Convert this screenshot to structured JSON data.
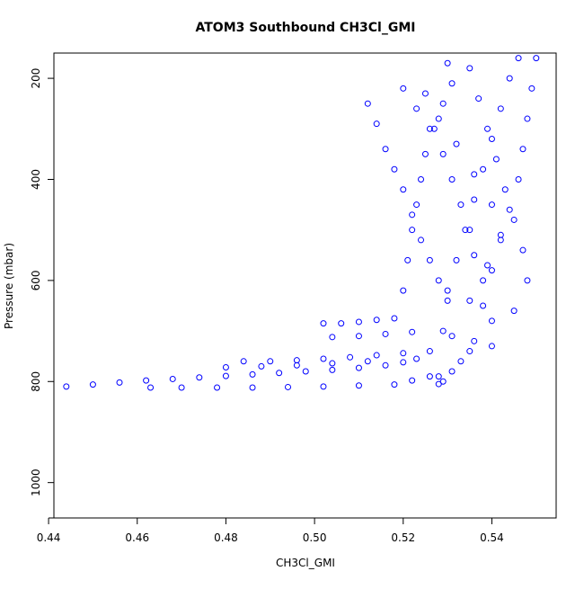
{
  "chart_data": {
    "type": "scatter",
    "title": "ATOM3 Southbound CH3Cl_GMI",
    "xlabel": "CH3Cl_GMI",
    "ylabel": "Pressure (mbar)",
    "xlim": [
      0.4412,
      0.5545
    ],
    "ylim": [
      1070,
      150
    ],
    "y_reversed": true,
    "grid": false,
    "marker": "open-circle",
    "color": "#0000ff",
    "x_ticks": [
      "0.44",
      "0.46",
      "0.48",
      "0.50",
      "0.52",
      "0.54"
    ],
    "y_ticks": [
      "200",
      "400",
      "600",
      "800",
      "1000"
    ],
    "series": [
      {
        "points": [
          [
            0.444,
            810
          ],
          [
            0.45,
            806
          ],
          [
            0.456,
            802
          ],
          [
            0.462,
            798
          ],
          [
            0.468,
            795
          ],
          [
            0.474,
            792
          ],
          [
            0.48,
            789
          ],
          [
            0.486,
            786
          ],
          [
            0.492,
            783
          ],
          [
            0.498,
            780
          ],
          [
            0.504,
            777
          ],
          [
            0.51,
            773
          ],
          [
            0.516,
            768
          ],
          [
            0.52,
            762
          ],
          [
            0.523,
            755
          ],
          [
            0.463,
            812
          ],
          [
            0.47,
            812
          ],
          [
            0.478,
            812
          ],
          [
            0.486,
            812
          ],
          [
            0.494,
            811
          ],
          [
            0.502,
            810
          ],
          [
            0.51,
            808
          ],
          [
            0.518,
            806
          ],
          [
            0.522,
            798
          ],
          [
            0.526,
            790
          ],
          [
            0.484,
            760
          ],
          [
            0.49,
            760
          ],
          [
            0.496,
            758
          ],
          [
            0.502,
            755
          ],
          [
            0.508,
            752
          ],
          [
            0.514,
            748
          ],
          [
            0.52,
            744
          ],
          [
            0.526,
            740
          ],
          [
            0.48,
            772
          ],
          [
            0.488,
            770
          ],
          [
            0.496,
            768
          ],
          [
            0.504,
            764
          ],
          [
            0.512,
            760
          ],
          [
            0.502,
            685
          ],
          [
            0.506,
            685
          ],
          [
            0.51,
            682
          ],
          [
            0.514,
            678
          ],
          [
            0.518,
            675
          ],
          [
            0.504,
            712
          ],
          [
            0.51,
            710
          ],
          [
            0.516,
            706
          ],
          [
            0.522,
            702
          ],
          [
            0.512,
            250
          ],
          [
            0.514,
            290
          ],
          [
            0.516,
            340
          ],
          [
            0.518,
            380
          ],
          [
            0.52,
            420
          ],
          [
            0.522,
            470
          ],
          [
            0.524,
            520
          ],
          [
            0.526,
            560
          ],
          [
            0.528,
            600
          ],
          [
            0.53,
            640
          ],
          [
            0.52,
            220
          ],
          [
            0.523,
            260
          ],
          [
            0.526,
            300
          ],
          [
            0.529,
            350
          ],
          [
            0.531,
            400
          ],
          [
            0.533,
            450
          ],
          [
            0.535,
            500
          ],
          [
            0.536,
            550
          ],
          [
            0.538,
            600
          ],
          [
            0.54,
            680
          ],
          [
            0.546,
            160
          ],
          [
            0.544,
            200
          ],
          [
            0.542,
            260
          ],
          [
            0.54,
            320
          ],
          [
            0.538,
            380
          ],
          [
            0.536,
            440
          ],
          [
            0.534,
            500
          ],
          [
            0.532,
            560
          ],
          [
            0.53,
            620
          ],
          [
            0.529,
            700
          ],
          [
            0.55,
            160
          ],
          [
            0.549,
            220
          ],
          [
            0.548,
            280
          ],
          [
            0.547,
            340
          ],
          [
            0.546,
            400
          ],
          [
            0.544,
            460
          ],
          [
            0.542,
            520
          ],
          [
            0.54,
            580
          ],
          [
            0.538,
            650
          ],
          [
            0.536,
            720
          ],
          [
            0.53,
            170
          ],
          [
            0.531,
            210
          ],
          [
            0.529,
            250
          ],
          [
            0.527,
            300
          ],
          [
            0.525,
            350
          ],
          [
            0.524,
            400
          ],
          [
            0.523,
            450
          ],
          [
            0.522,
            500
          ],
          [
            0.521,
            560
          ],
          [
            0.52,
            620
          ],
          [
            0.535,
            180
          ],
          [
            0.537,
            240
          ],
          [
            0.539,
            300
          ],
          [
            0.541,
            360
          ],
          [
            0.543,
            420
          ],
          [
            0.545,
            480
          ],
          [
            0.547,
            540
          ],
          [
            0.548,
            600
          ],
          [
            0.545,
            660
          ],
          [
            0.54,
            730
          ],
          [
            0.525,
            230
          ],
          [
            0.528,
            280
          ],
          [
            0.532,
            330
          ],
          [
            0.536,
            390
          ],
          [
            0.54,
            450
          ],
          [
            0.542,
            510
          ],
          [
            0.539,
            570
          ],
          [
            0.535,
            640
          ],
          [
            0.531,
            710
          ],
          [
            0.528,
            790
          ],
          [
            0.533,
            760
          ],
          [
            0.531,
            780
          ],
          [
            0.529,
            800
          ],
          [
            0.528,
            805
          ],
          [
            0.535,
            740
          ]
        ]
      }
    ]
  }
}
